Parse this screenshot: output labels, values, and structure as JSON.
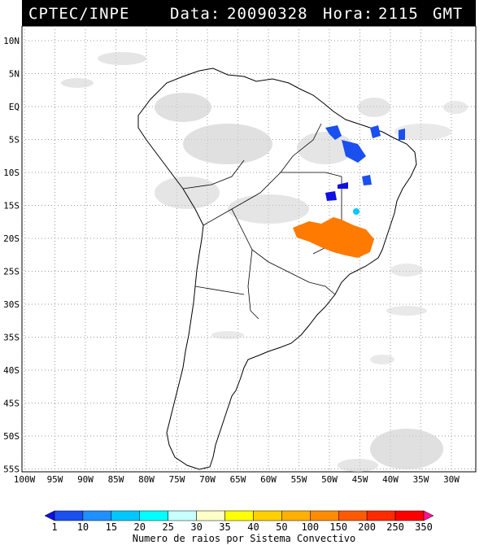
{
  "header": {
    "org": "CPTEC/INPE",
    "date_label": "Data:",
    "date_value": "20090328",
    "hour_label": "Hora:",
    "hour_value": "2115",
    "tz": "GMT"
  },
  "map": {
    "lat_labels": [
      "10N",
      "5N",
      "EQ",
      "5S",
      "10S",
      "15S",
      "20S",
      "25S",
      "30S",
      "35S",
      "40S",
      "45S",
      "50S",
      "55S"
    ],
    "lon_labels": [
      "100W",
      "95W",
      "90W",
      "85W",
      "80W",
      "75W",
      "70W",
      "65W",
      "60W",
      "55W",
      "50W",
      "45W",
      "40W",
      "35W",
      "30W"
    ],
    "clouds_color": "#d0d0d0",
    "coast_color": "#000000"
  },
  "legend": {
    "title": "Numero de raios por Sistema Convectivo",
    "levels": [
      "1",
      "10",
      "15",
      "20",
      "25",
      "30",
      "35",
      "40",
      "50",
      "100",
      "150",
      "200",
      "250",
      "350"
    ],
    "colors": [
      "#1010e0",
      "#1a4ff0",
      "#1e90ff",
      "#00c8ff",
      "#00ffff",
      "#c8ffff",
      "#ffffc8",
      "#ffff00",
      "#ffd000",
      "#ffb000",
      "#ff8c00",
      "#ff5a00",
      "#ff2a00",
      "#ff0000",
      "#ff1493"
    ]
  },
  "systems": [
    {
      "name": "central-brazil",
      "color": "#ff7a00"
    },
    {
      "name": "northeast-brazil",
      "color": "#1a4ff0"
    }
  ]
}
